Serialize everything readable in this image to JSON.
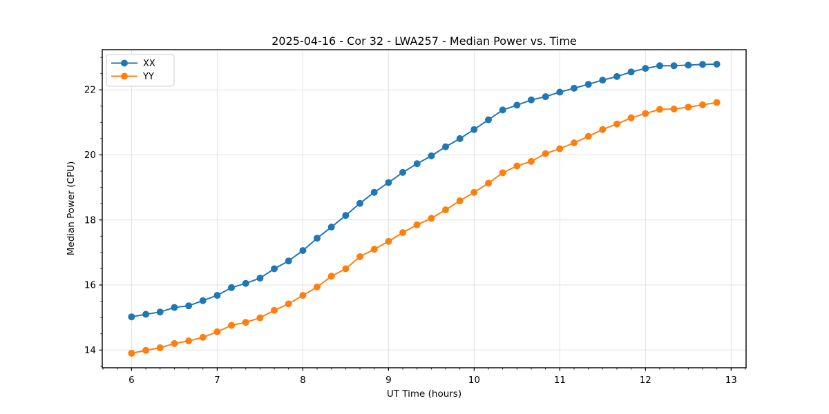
{
  "figure": {
    "background": "#ffffff",
    "frame_color": "#000000",
    "grid_color": "#e1e1e1"
  },
  "chart_data": {
    "type": "line",
    "title": "2025-04-16 - Cor 32 - LWA257 - Median Power vs. Time",
    "xlabel": "UT Time (hours)",
    "ylabel": "Median Power (CPU)",
    "xlim": [
      5.658,
      13.175
    ],
    "ylim": [
      13.455,
      23.235
    ],
    "x_ticks": [
      6,
      7,
      8,
      9,
      10,
      11,
      12,
      13
    ],
    "y_ticks": [
      14,
      16,
      18,
      20,
      22
    ],
    "x_minor_step": 0.166667,
    "y_minor_step": 0.5,
    "grid": true,
    "legend_position": "upper-left",
    "marker": "circle",
    "x": [
      6.0,
      6.1667,
      6.3333,
      6.5,
      6.6667,
      6.8333,
      7.0,
      7.1667,
      7.3333,
      7.5,
      7.6667,
      7.8333,
      8.0,
      8.1667,
      8.3333,
      8.5,
      8.6667,
      8.8333,
      9.0,
      9.1667,
      9.3333,
      9.5,
      9.6667,
      9.8333,
      10.0,
      10.1667,
      10.3333,
      10.5,
      10.6667,
      10.8333,
      11.0,
      11.1667,
      11.3333,
      11.5,
      11.6667,
      11.8333,
      12.0,
      12.1667,
      12.3333,
      12.5,
      12.6667,
      12.8333
    ],
    "series": [
      {
        "name": "XX",
        "color": "#1f77b4",
        "values": [
          15.02,
          15.1,
          15.17,
          15.31,
          15.36,
          15.52,
          15.68,
          15.92,
          16.05,
          16.21,
          16.5,
          16.74,
          17.06,
          17.44,
          17.78,
          18.14,
          18.51,
          18.85,
          19.15,
          19.46,
          19.73,
          19.97,
          20.25,
          20.5,
          20.78,
          21.08,
          21.38,
          21.53,
          21.69,
          21.79,
          21.93,
          22.05,
          22.17,
          22.3,
          22.41,
          22.55,
          22.66,
          22.74,
          22.74,
          22.76,
          22.78,
          22.79
        ]
      },
      {
        "name": "YY",
        "color": "#ff7f0e",
        "values": [
          13.9,
          13.99,
          14.07,
          14.2,
          14.28,
          14.39,
          14.56,
          14.76,
          14.85,
          14.99,
          15.22,
          15.42,
          15.68,
          15.94,
          16.27,
          16.5,
          16.87,
          17.1,
          17.34,
          17.61,
          17.85,
          18.05,
          18.31,
          18.59,
          18.85,
          19.13,
          19.45,
          19.66,
          19.8,
          20.04,
          20.19,
          20.37,
          20.57,
          20.78,
          20.95,
          21.14,
          21.27,
          21.4,
          21.41,
          21.47,
          21.54,
          21.61
        ]
      }
    ]
  }
}
